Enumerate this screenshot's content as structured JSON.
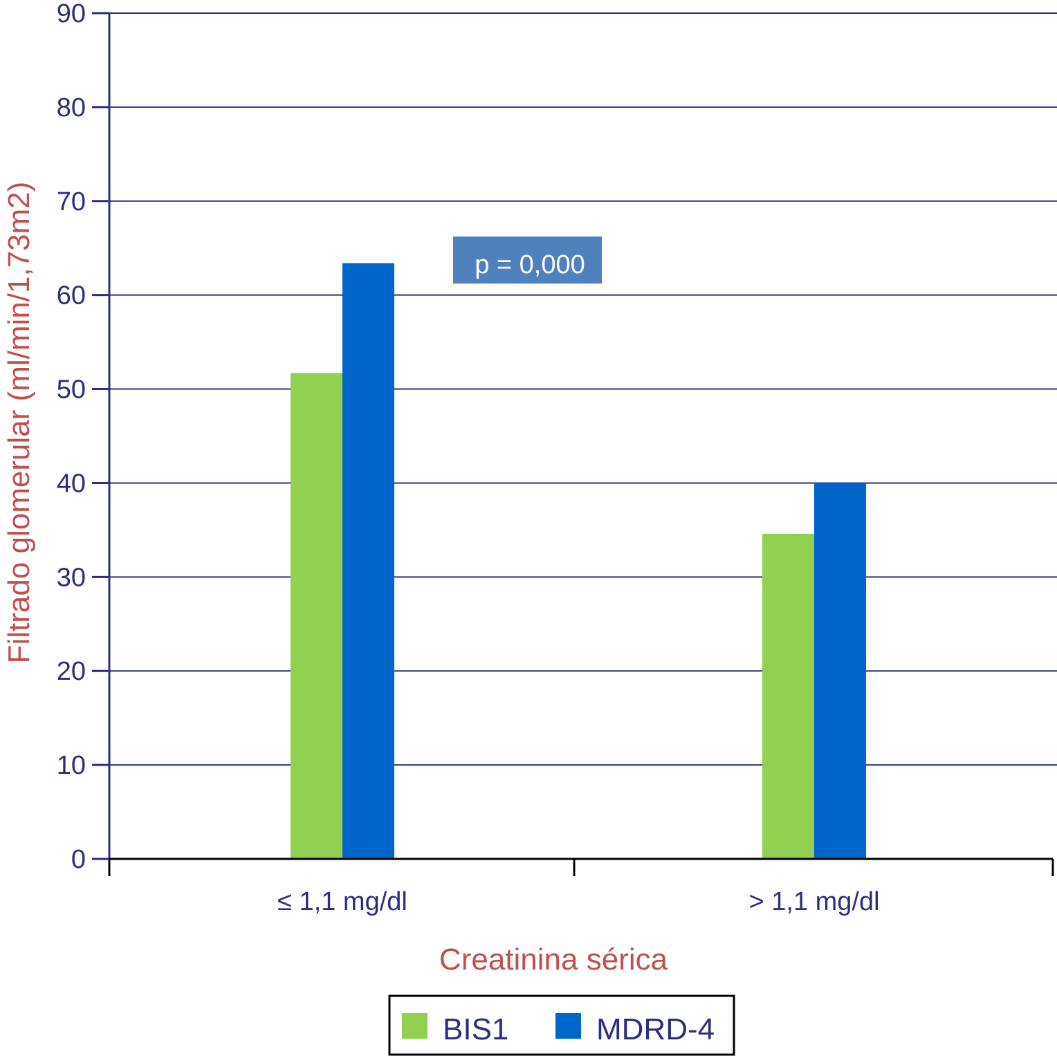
{
  "colors": {
    "axis": "#2e2e7e",
    "grid": "#2e2e7e",
    "tick_text": "#2e2e7e",
    "axis_title": "#c0504d",
    "bis1": "#92d050",
    "mdrd4": "#0066cc",
    "annotation_bg": "#4f81bd",
    "annotation_text": "#ffffff",
    "legend_border": "#000000"
  },
  "chart_data": {
    "type": "bar",
    "categories": [
      "≤ 1,1 mg/dl",
      "> 1,1 mg/dl"
    ],
    "series": [
      {
        "name": "BIS1",
        "color": "#92d050",
        "values": [
          51.7,
          34.6
        ]
      },
      {
        "name": "MDRD-4",
        "color": "#0066cc",
        "values": [
          63.4,
          40.0
        ]
      }
    ],
    "xlabel": "Creatinina sérica",
    "ylabel": "Filtrado glomerular (ml/min/1,73m2)",
    "ylim": [
      0,
      90
    ],
    "yticks": [
      0,
      10,
      20,
      30,
      40,
      50,
      60,
      70,
      80,
      90
    ],
    "grid": true,
    "legend_position": "bottom-center",
    "annotation": "p = 0,000"
  }
}
